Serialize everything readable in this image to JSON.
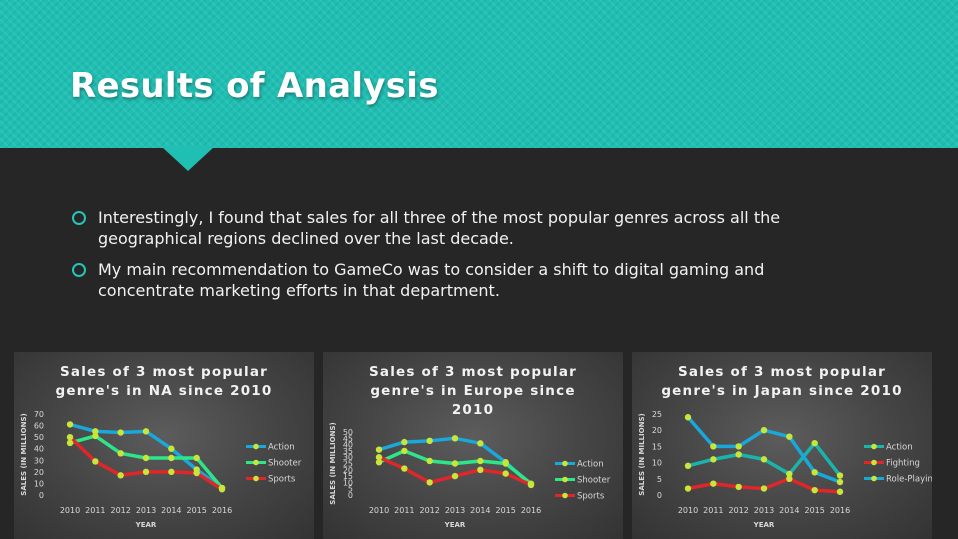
{
  "slide": {
    "title": "Results of Analysis",
    "bullets": [
      "Interestingly, I found that sales for all three of the most popular genres across all the geographical regions declined over the last decade.",
      "My main recommendation to GameCo was to consider a shift to digital gaming and concentrate marketing efforts in that department."
    ],
    "colors": {
      "banner": "#1fbfb3",
      "background": "#262626",
      "bullet": "#26c4b8"
    }
  },
  "chart_data": [
    {
      "type": "line",
      "title_lines": [
        "Sales of 3 most popular",
        "genre's in NA since 2010"
      ],
      "xlabel": "YEAR",
      "ylabel": "SALES (IN MILLIONS)",
      "ylim": [
        0,
        70
      ],
      "yticks": [
        0,
        10,
        20,
        30,
        40,
        50,
        60,
        70
      ],
      "categories": [
        "2010",
        "2011",
        "2012",
        "2013",
        "2014",
        "2015",
        "2016"
      ],
      "legend": "right",
      "series": [
        {
          "name": "Action",
          "color": "#1aa7d9",
          "values": [
            61,
            55,
            54,
            55,
            40,
            22,
            6
          ]
        },
        {
          "name": "Shooter",
          "color": "#2ee68a",
          "values": [
            45,
            51,
            36,
            32,
            32,
            32,
            6
          ]
        },
        {
          "name": "Sports",
          "color": "#e0262a",
          "values": [
            50,
            29,
            17,
            20,
            20,
            19,
            5
          ]
        }
      ]
    },
    {
      "type": "line",
      "title_lines": [
        "Sales of 3 most popular",
        "genre's in Europe since",
        "2010"
      ],
      "xlabel": "YEAR",
      "ylabel": "SALES (IN MILLIONS)",
      "ylim": [
        0,
        50
      ],
      "yticks": [
        0,
        5,
        10,
        15,
        20,
        25,
        30,
        35,
        40,
        45,
        50
      ],
      "categories": [
        "2010",
        "2011",
        "2012",
        "2013",
        "2014",
        "2015",
        "2016"
      ],
      "legend": "right",
      "series": [
        {
          "name": "Action",
          "color": "#1aa7d9",
          "values": [
            36,
            42,
            43,
            45,
            41,
            26,
            8
          ]
        },
        {
          "name": "Shooter",
          "color": "#2ee68a",
          "values": [
            26,
            35,
            27,
            25,
            27,
            25,
            9
          ]
        },
        {
          "name": "Sports",
          "color": "#e0262a",
          "values": [
            30,
            21,
            10,
            15,
            20,
            17,
            8
          ]
        }
      ]
    },
    {
      "type": "line",
      "title_lines": [
        "Sales of 3 most popular",
        "genre's in Japan since 2010"
      ],
      "xlabel": "YEAR",
      "ylabel": "SALES (IN MILLIONS)",
      "ylim": [
        0,
        25
      ],
      "yticks": [
        0,
        5,
        10,
        15,
        20,
        25
      ],
      "categories": [
        "2010",
        "2011",
        "2012",
        "2013",
        "2014",
        "2015",
        "2016"
      ],
      "legend": "right",
      "series": [
        {
          "name": "Action",
          "color": "#19b5ad",
          "values": [
            9,
            11,
            12.5,
            11,
            6.5,
            16,
            6
          ]
        },
        {
          "name": "Fighting",
          "color": "#e0262a",
          "values": [
            2,
            3.5,
            2.5,
            2,
            5,
            1.5,
            1
          ]
        },
        {
          "name": "Role-Playing",
          "color": "#1aa7d9",
          "values": [
            24,
            15,
            15,
            20,
            18,
            7,
            4
          ]
        }
      ]
    }
  ]
}
